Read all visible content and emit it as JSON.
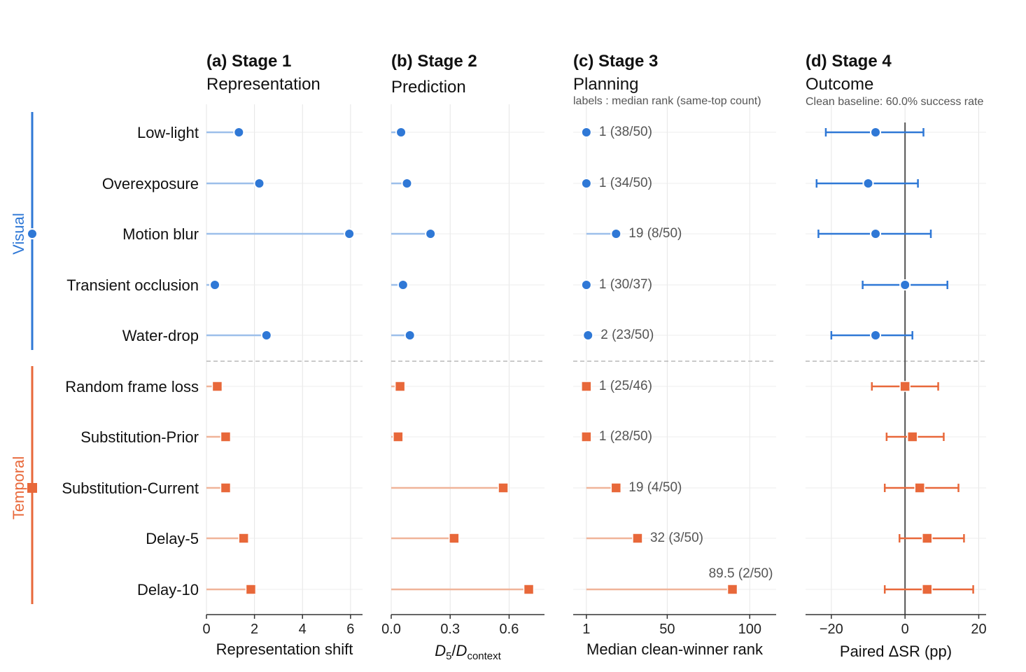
{
  "chart_data": {
    "type": "dot",
    "rows": [
      "Low-light",
      "Overexposure",
      "Motion blur",
      "Transient occlusion",
      "Water-drop",
      "Random frame loss",
      "Substitution-Prior",
      "Substitution-Current",
      "Delay-5",
      "Delay-10"
    ],
    "groups": [
      {
        "label": "Visual",
        "rows": [
          0,
          1,
          2,
          3,
          4
        ],
        "color": "#2f78d6",
        "marker": "circle"
      },
      {
        "label": "Temporal",
        "rows": [
          5,
          6,
          7,
          8,
          9
        ],
        "color": "#e8683a",
        "marker": "square"
      }
    ],
    "panels": [
      {
        "title": "(a) Stage 1",
        "subtitle": "Representation",
        "note": "",
        "xlabel": "Representation shift",
        "xlim": [
          0,
          6.5
        ],
        "ticks": [
          0,
          2,
          4,
          6
        ],
        "tick_labels": [
          "0",
          "2",
          "4",
          "6"
        ],
        "baseline": 0,
        "values": [
          1.35,
          2.2,
          5.95,
          0.35,
          2.5,
          0.45,
          0.8,
          0.8,
          1.55,
          1.85
        ]
      },
      {
        "title": "(b) Stage 2",
        "subtitle": "Prediction",
        "note": "",
        "xlabel": "D5/Dcontext",
        "xlim": [
          0,
          0.78
        ],
        "ticks": [
          0.0,
          0.3,
          0.6
        ],
        "tick_labels": [
          "0.0",
          "0.3",
          "0.6"
        ],
        "baseline": 0,
        "values": [
          0.05,
          0.08,
          0.2,
          0.06,
          0.095,
          0.045,
          0.035,
          0.57,
          0.32,
          0.7
        ]
      },
      {
        "title": "(c) Stage 3",
        "subtitle": "Planning",
        "note": "labels : median rank (same-top count)",
        "xlabel": "Median clean-winner rank",
        "xlim": [
          -7,
          116
        ],
        "ticks": [
          1,
          50,
          100
        ],
        "tick_labels": [
          "1",
          "50",
          "100"
        ],
        "baseline": 1,
        "values": [
          1,
          1,
          19,
          1,
          2,
          1,
          1,
          19,
          32,
          89.5
        ],
        "labels": [
          "1 (38/50)",
          "1 (34/50)",
          "19 (8/50)",
          "1 (30/37)",
          "2 (23/50)",
          "1 (25/46)",
          "1 (28/50)",
          "19 (4/50)",
          "32 (3/50)",
          "89.5 (2/50)"
        ]
      },
      {
        "title": "(d) Stage 4",
        "subtitle": "Outcome",
        "note": "Clean baseline: 60.0% success rate",
        "xlabel": "Paired ΔSR (pp)",
        "xlim": [
          -27,
          22
        ],
        "ticks": [
          -20,
          0,
          20
        ],
        "tick_labels": [
          "−20",
          "0",
          "20"
        ],
        "zero_line": 0,
        "values": [
          -8,
          -10,
          -8,
          0,
          -8,
          0,
          2,
          4,
          6,
          6
        ],
        "ci_low": [
          -21.5,
          -24,
          -23.5,
          -11.5,
          -20,
          -9,
          -5,
          -5.5,
          -1.5,
          -5.5
        ],
        "ci_high": [
          5,
          3.5,
          7,
          11.5,
          2,
          9,
          10.5,
          14.5,
          16,
          18.5
        ]
      }
    ]
  }
}
